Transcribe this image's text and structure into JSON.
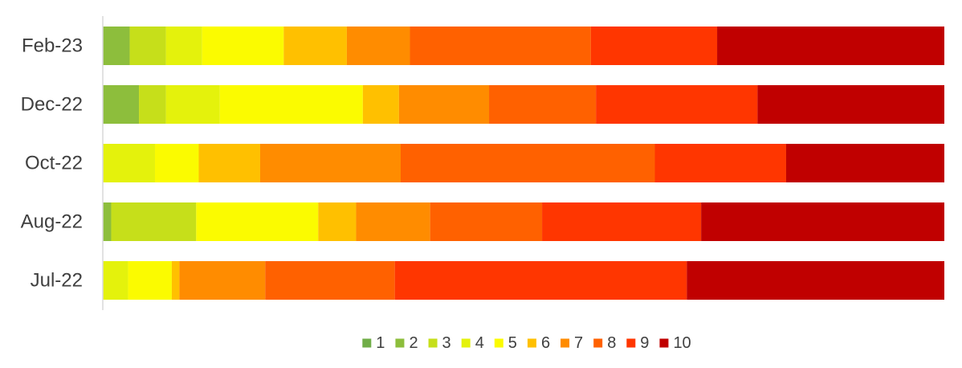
{
  "chart_data": {
    "type": "bar",
    "orientation": "horizontal",
    "stacking": "percent",
    "categories": [
      "Feb-23",
      "Dec-22",
      "Oct-22",
      "Aug-22",
      "Jul-22"
    ],
    "xlim": [
      0,
      100
    ],
    "grid": false,
    "legend_position": "bottom",
    "series": [
      {
        "name": "1",
        "color": "#70ad47",
        "values": [
          0.0,
          0.0,
          0.0,
          0.0,
          0.0
        ]
      },
      {
        "name": "2",
        "color": "#8dbe3c",
        "values": [
          3.2,
          4.3,
          0.0,
          1.0,
          0.0
        ]
      },
      {
        "name": "3",
        "color": "#c6df1a",
        "values": [
          4.3,
          3.2,
          0.0,
          10.1,
          0.0
        ]
      },
      {
        "name": "4",
        "color": "#e4f20c",
        "values": [
          4.3,
          6.4,
          6.2,
          0.0,
          3.0
        ]
      },
      {
        "name": "5",
        "color": "#fbfb00",
        "values": [
          9.7,
          17.0,
          5.2,
          14.5,
          5.2
        ]
      },
      {
        "name": "6",
        "color": "#ffc000",
        "values": [
          7.5,
          4.3,
          7.3,
          4.5,
          0.9
        ]
      },
      {
        "name": "7",
        "color": "#ff8c00",
        "values": [
          7.5,
          10.7,
          16.7,
          8.8,
          10.2
        ]
      },
      {
        "name": "8",
        "color": "#ff6100",
        "values": [
          21.5,
          12.7,
          30.2,
          13.3,
          15.4
        ]
      },
      {
        "name": "9",
        "color": "#ff3600",
        "values": [
          15.0,
          19.2,
          15.6,
          18.9,
          34.7
        ]
      },
      {
        "name": "10",
        "color": "#c00000",
        "values": [
          27.0,
          22.2,
          18.8,
          28.9,
          30.6
        ]
      }
    ]
  }
}
